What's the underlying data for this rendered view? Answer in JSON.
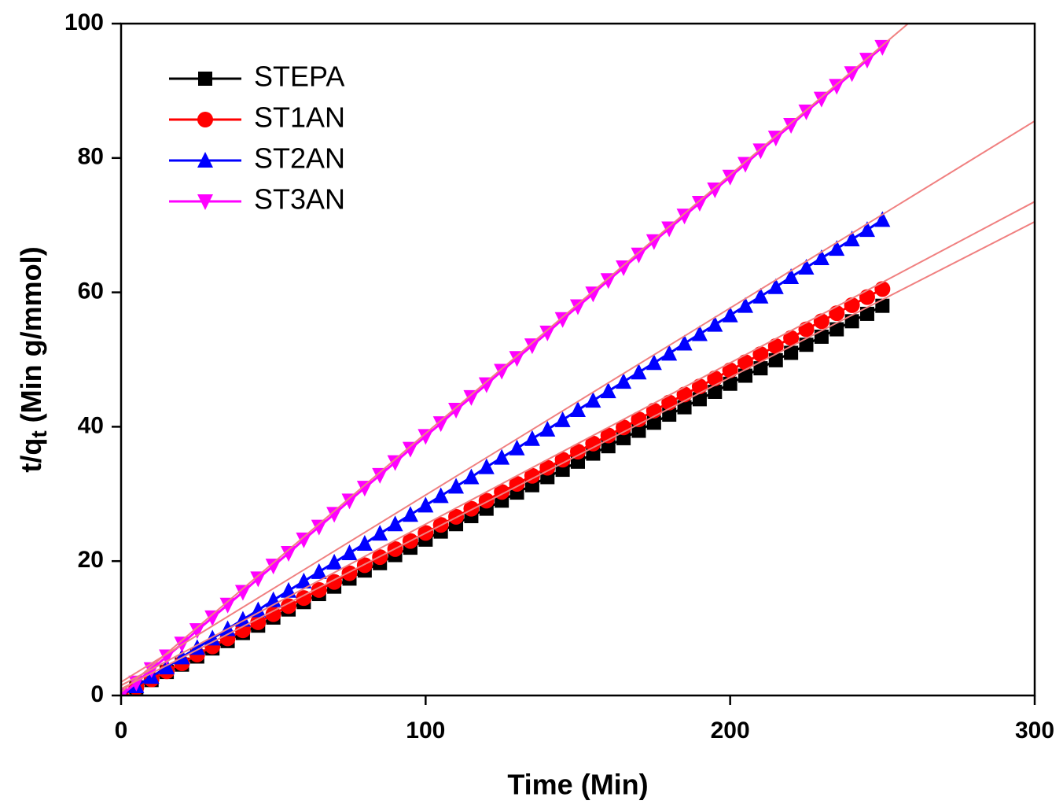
{
  "chart_data": {
    "type": "scatter-line",
    "xlabel": "Time (Min)",
    "ylabel": {
      "main": "t/q",
      "sub": "t",
      "rest": " (Min g/mmol)"
    },
    "xlim": [
      0,
      300
    ],
    "xticks": [
      0,
      100,
      200,
      300
    ],
    "ylim": [
      0,
      100
    ],
    "yticks": [
      0,
      20,
      40,
      60,
      80,
      100
    ],
    "legend": "upper-left",
    "x": [
      0,
      5,
      10,
      15,
      20,
      25,
      30,
      35,
      40,
      45,
      50,
      55,
      60,
      65,
      70,
      75,
      80,
      85,
      90,
      95,
      100,
      105,
      110,
      115,
      120,
      125,
      130,
      135,
      140,
      145,
      150,
      155,
      160,
      165,
      170,
      175,
      180,
      185,
      190,
      195,
      200,
      205,
      210,
      215,
      220,
      225,
      230,
      235,
      240,
      245,
      250
    ],
    "series": [
      {
        "name": "STEPA",
        "color": "#000000",
        "marker": "square",
        "values": [
          0,
          1.2,
          2.3,
          3.5,
          4.6,
          5.8,
          7.0,
          8.1,
          9.3,
          10.4,
          11.6,
          12.8,
          13.9,
          15.1,
          16.2,
          17.4,
          18.6,
          19.7,
          20.9,
          22.0,
          23.2,
          24.4,
          25.5,
          26.7,
          27.8,
          29.0,
          30.2,
          31.3,
          32.5,
          33.6,
          34.8,
          36.0,
          37.1,
          38.3,
          39.4,
          40.6,
          41.8,
          42.9,
          44.1,
          45.2,
          46.4,
          47.6,
          48.7,
          49.9,
          51.0,
          52.2,
          53.4,
          54.5,
          55.7,
          56.8,
          58.0
        ]
      },
      {
        "name": "ST1AN",
        "color": "#ff0000",
        "marker": "circle",
        "values": [
          0,
          1.2,
          2.4,
          3.6,
          4.8,
          6.1,
          7.3,
          8.5,
          9.7,
          10.9,
          12.1,
          13.3,
          14.5,
          15.7,
          16.9,
          18.2,
          19.4,
          20.6,
          21.8,
          23.0,
          24.2,
          25.4,
          26.6,
          27.8,
          29.0,
          30.3,
          31.5,
          32.7,
          33.9,
          35.1,
          36.3,
          37.5,
          38.7,
          39.9,
          41.1,
          42.4,
          43.6,
          44.8,
          46.0,
          47.2,
          48.4,
          49.6,
          50.8,
          52.0,
          53.2,
          54.5,
          55.7,
          56.9,
          58.1,
          59.3,
          60.5
        ]
      },
      {
        "name": "ST2AN",
        "color": "#0000ff",
        "marker": "triangle-up",
        "values": [
          0,
          1.4,
          2.8,
          4.2,
          5.7,
          7.1,
          8.5,
          9.9,
          11.3,
          12.7,
          14.2,
          15.6,
          17.0,
          18.4,
          19.8,
          21.2,
          22.6,
          24.1,
          25.5,
          26.9,
          28.3,
          29.7,
          31.1,
          32.5,
          34.0,
          35.4,
          36.8,
          38.2,
          39.6,
          41.0,
          42.5,
          43.9,
          45.3,
          46.7,
          48.1,
          49.5,
          50.9,
          52.4,
          53.8,
          55.2,
          56.6,
          58.0,
          59.4,
          60.8,
          62.3,
          63.7,
          65.1,
          66.5,
          67.9,
          69.3,
          70.8
        ]
      },
      {
        "name": "ST3AN",
        "color": "#ff00ff",
        "marker": "triangle-down",
        "values": [
          0,
          1.9,
          3.9,
          5.8,
          7.7,
          9.7,
          11.6,
          13.5,
          15.4,
          17.4,
          19.3,
          21.2,
          23.2,
          25.1,
          27.0,
          29.0,
          30.9,
          32.8,
          34.7,
          36.7,
          38.6,
          40.5,
          42.5,
          44.4,
          46.3,
          48.3,
          50.2,
          52.1,
          54.0,
          56.0,
          57.9,
          59.8,
          61.8,
          63.7,
          65.6,
          67.6,
          69.5,
          71.4,
          73.3,
          75.3,
          77.2,
          79.1,
          81.1,
          83.0,
          84.9,
          86.9,
          88.8,
          90.7,
          92.6,
          94.6,
          96.5
        ]
      }
    ],
    "fit_lines": {
      "color": "#f08080",
      "x": [
        0,
        300
      ],
      "lines": [
        [
          1.0,
          70.5
        ],
        [
          1.5,
          73.5
        ],
        [
          2.0,
          85.5
        ],
        [
          0.5,
          116.0
        ]
      ]
    }
  }
}
